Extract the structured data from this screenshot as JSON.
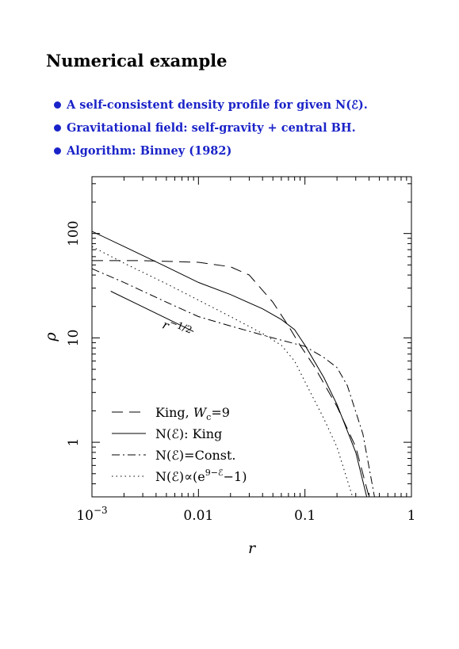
{
  "title": "Numerical example",
  "bullets": [
    "A self-consistent density profile for given N(ℰ).",
    "Gravitational field: self-gravity + central BH.",
    "Algorithm: Binney (1982)"
  ],
  "colors": {
    "bullet": "#1a23c8",
    "ink": "#000000"
  },
  "chart_data": {
    "type": "line",
    "xlabel": "r",
    "ylabel": "ρ",
    "xscale": "log",
    "yscale": "log",
    "xlim": [
      0.001,
      1
    ],
    "ylim": [
      0.3,
      350
    ],
    "xticklabels": [
      {
        "base": "10",
        "exp": "−3",
        "value": 0.001
      },
      {
        "base": "0.01",
        "exp": "",
        "value": 0.01
      },
      {
        "base": "0.1",
        "exp": "",
        "value": 0.1
      },
      {
        "base": "1",
        "exp": "",
        "value": 1
      }
    ],
    "yticklabels": [
      {
        "label": "1",
        "value": 1
      },
      {
        "label": "10",
        "value": 10
      },
      {
        "label": "100",
        "value": 100
      }
    ],
    "annotation": {
      "text": "r",
      "exp": "−1/2",
      "line": [
        [
          0.0015,
          28
        ],
        [
          0.009,
          11.5
        ]
      ],
      "at": [
        0.0045,
        12.5
      ]
    },
    "legend_position": "bottom-left",
    "series": [
      {
        "name": "King, W_c=9",
        "label": "King,",
        "sym": "W",
        "sub": "c",
        "after": "=9",
        "dash": "14,8",
        "x": [
          0.001,
          0.003,
          0.01,
          0.02,
          0.03,
          0.05,
          0.07,
          0.09,
          0.12,
          0.2,
          0.3,
          0.4
        ],
        "y": [
          55,
          55,
          53,
          48,
          40,
          22,
          13,
          8.5,
          5.5,
          2.2,
          0.9,
          0.3
        ]
      },
      {
        "name": "N(ℰ): King",
        "label": "N(ℰ): King",
        "sym": "",
        "sub": "",
        "after": "",
        "dash": "",
        "x": [
          0.001,
          0.002,
          0.005,
          0.01,
          0.02,
          0.04,
          0.06,
          0.08,
          0.1,
          0.15,
          0.2,
          0.3,
          0.38
        ],
        "y": [
          105,
          75,
          48,
          34,
          26,
          19,
          15,
          12,
          8.5,
          4.2,
          2.3,
          0.8,
          0.3
        ]
      },
      {
        "name": "N(ℰ)=Const.",
        "label": "N(ℰ)=Const.",
        "sym": "",
        "sub": "",
        "after": "",
        "dash": "10,4,2,4",
        "x": [
          0.001,
          0.002,
          0.005,
          0.01,
          0.02,
          0.05,
          0.1,
          0.15,
          0.2,
          0.25,
          0.35,
          0.45
        ],
        "y": [
          46,
          34,
          22,
          16,
          13,
          10,
          8.3,
          6.5,
          5.2,
          3.5,
          1.2,
          0.3
        ]
      },
      {
        "name": "N(ℰ)∝(e^(9−ℰ)−1)",
        "label": "N(ℰ)∝(e",
        "sym": "",
        "sub": "",
        "after": "",
        "sup": "9−ℰ",
        "tail": "−1)",
        "dash": "1.5,4",
        "x": [
          0.001,
          0.002,
          0.005,
          0.01,
          0.02,
          0.04,
          0.06,
          0.08,
          0.1,
          0.15,
          0.2,
          0.28
        ],
        "y": [
          75,
          52,
          33,
          23,
          16,
          11,
          8.5,
          6,
          3.8,
          1.7,
          0.9,
          0.3
        ]
      }
    ]
  }
}
